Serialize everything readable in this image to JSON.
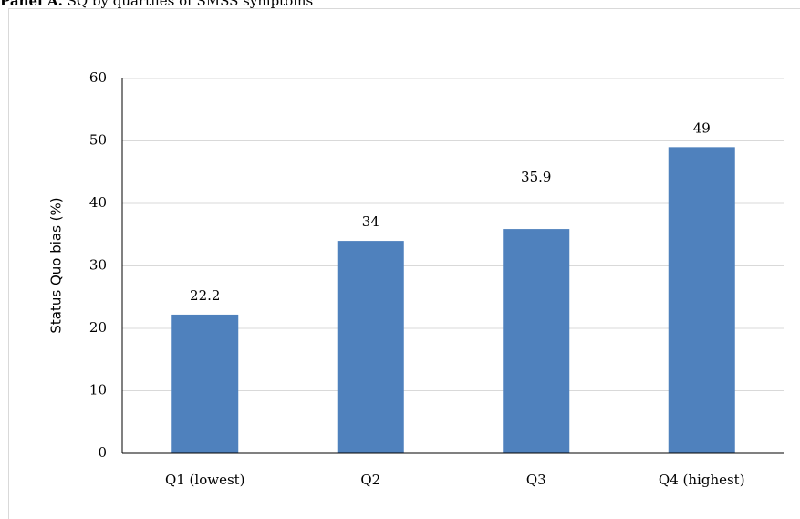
{
  "panel": {
    "title_bold": "Panel A.",
    "title_rest": "SQ by quartiles of SMSS symptoms"
  },
  "chart_data": {
    "type": "bar",
    "title": "",
    "xlabel": "",
    "ylabel": "Status Quo bias (%)",
    "categories": [
      "Q1 (lowest)",
      "Q2",
      "Q3",
      "Q4 (highest)"
    ],
    "values": [
      22.2,
      34,
      35.9,
      49
    ],
    "data_labels": [
      "22.2",
      "34",
      "35.9",
      "49"
    ],
    "ylim": [
      0,
      60
    ],
    "yticks": [
      0,
      10,
      20,
      30,
      40,
      50,
      60
    ],
    "grid": true,
    "legend": "none",
    "bar_color": "#4f81bd"
  }
}
